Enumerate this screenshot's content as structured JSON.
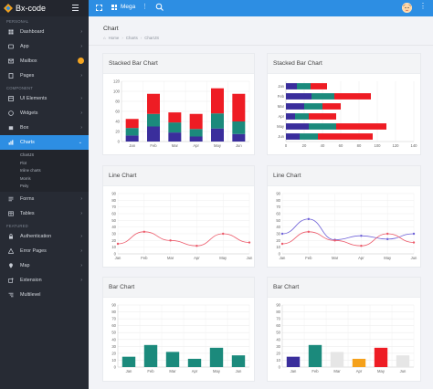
{
  "brand": {
    "name": "Bx-code"
  },
  "sidebar": {
    "sections": [
      {
        "label": "PERSONAL",
        "items": [
          {
            "label": "Dashboard",
            "icon": "dashboard-icon",
            "has_chevron": true
          },
          {
            "label": "App",
            "icon": "app-icon",
            "has_chevron": true
          },
          {
            "label": "Mailbox",
            "icon": "mail-icon",
            "has_badge": true
          },
          {
            "label": "Pages",
            "icon": "pages-icon",
            "has_chevron": true
          }
        ]
      },
      {
        "label": "COMPONENT",
        "items": [
          {
            "label": "UI Elements",
            "icon": "ui-elements-icon",
            "has_chevron": true
          },
          {
            "label": "Widgets",
            "icon": "widgets-icon",
            "has_chevron": true
          },
          {
            "label": "Box",
            "icon": "box-icon",
            "has_chevron": true
          },
          {
            "label": "Charts",
            "icon": "charts-icon",
            "has_chevron": true,
            "active": true,
            "submenu": [
              "ChartJS",
              "Flot",
              "Inline charts",
              "Morris",
              "Peity"
            ]
          },
          {
            "label": "Forms",
            "icon": "forms-icon",
            "has_chevron": true
          },
          {
            "label": "Tables",
            "icon": "tables-icon",
            "has_chevron": true
          }
        ]
      },
      {
        "label": "FEATURED",
        "items": [
          {
            "label": "Authentication",
            "icon": "auth-icon",
            "has_chevron": true
          },
          {
            "label": "Error Pages",
            "icon": "error-pages-icon",
            "has_chevron": true
          },
          {
            "label": "Map",
            "icon": "map-icon",
            "has_chevron": true
          },
          {
            "label": "Extension",
            "icon": "extension-icon",
            "has_chevron": true
          },
          {
            "label": "Multilevel",
            "icon": "multilevel-icon",
            "has_chevron": false
          }
        ]
      }
    ]
  },
  "header": {
    "mega_label": "Mega"
  },
  "page": {
    "title": "Chart",
    "breadcrumb": [
      "Home",
      "Charts",
      "ChartJS"
    ]
  },
  "colors": {
    "accent": "#2d8ee3",
    "sidebar": "#272b34",
    "navy": "#3a2e9c",
    "teal": "#1b8a7c",
    "red": "#ee1c24",
    "gray": "#e6e6e6",
    "orange": "#f5a11b",
    "purple": "#6f62d8",
    "pink": "#ec5a6a"
  },
  "cards": [
    {
      "title": "Stacked Bar Chart"
    },
    {
      "title": "Stacked Bar Chart"
    },
    {
      "title": "Line Chart"
    },
    {
      "title": "Line Chart"
    },
    {
      "title": "Bar Chart"
    },
    {
      "title": "Bar Chart"
    }
  ],
  "chart_data": [
    {
      "type": "bar",
      "stacked": true,
      "orientation": "vertical",
      "title": "Stacked Bar Chart",
      "categories": [
        "Jan",
        "Feb",
        "Mar",
        "Apr",
        "May",
        "Jun"
      ],
      "ylim": [
        0,
        120
      ],
      "yticks": [
        0,
        20,
        40,
        60,
        80,
        100,
        120
      ],
      "series": [
        {
          "color": "#3a2e9c",
          "values": [
            12,
            30,
            18,
            10,
            26,
            15
          ]
        },
        {
          "color": "#1b8a7c",
          "values": [
            15,
            25,
            20,
            15,
            30,
            25
          ]
        },
        {
          "color": "#ee1c24",
          "values": [
            18,
            40,
            20,
            30,
            50,
            55
          ]
        }
      ]
    },
    {
      "type": "bar",
      "stacked": true,
      "orientation": "horizontal",
      "title": "Stacked Bar Chart",
      "categories": [
        "Jan",
        "Feb",
        "Mar",
        "Apr",
        "May",
        "Jun"
      ],
      "xlim": [
        0,
        140
      ],
      "xticks": [
        0,
        20,
        40,
        60,
        80,
        100,
        120,
        140
      ],
      "series": [
        {
          "color": "#3a2e9c",
          "values": [
            12,
            28,
            20,
            10,
            25,
            15
          ]
        },
        {
          "color": "#1b8a7c",
          "values": [
            15,
            25,
            20,
            15,
            30,
            20
          ]
        },
        {
          "color": "#ee1c24",
          "values": [
            18,
            40,
            20,
            30,
            55,
            60
          ]
        }
      ]
    },
    {
      "type": "line",
      "title": "Line Chart",
      "categories": [
        "Jan",
        "Feb",
        "Mar",
        "Apr",
        "May",
        "Jun"
      ],
      "ylim": [
        0,
        90
      ],
      "yticks": [
        0,
        10,
        20,
        30,
        40,
        50,
        60,
        70,
        80,
        90
      ],
      "series": [
        {
          "color": "#ec5a6a",
          "values": [
            15,
            33,
            20,
            12,
            30,
            17
          ]
        }
      ]
    },
    {
      "type": "line",
      "title": "Line Chart",
      "categories": [
        "Jan",
        "Feb",
        "Mar",
        "Apr",
        "May",
        "Jun"
      ],
      "ylim": [
        0,
        90
      ],
      "yticks": [
        0,
        10,
        20,
        30,
        40,
        50,
        60,
        70,
        80,
        90
      ],
      "series": [
        {
          "color": "#6f62d8",
          "values": [
            30,
            52,
            21,
            27,
            22,
            30
          ]
        },
        {
          "color": "#ec5a6a",
          "values": [
            15,
            33,
            20,
            12,
            30,
            17
          ]
        }
      ]
    },
    {
      "type": "bar",
      "title": "Bar Chart",
      "categories": [
        "Jan",
        "Feb",
        "Mar",
        "Apr",
        "May",
        "Jun"
      ],
      "ylim": [
        0,
        90
      ],
      "yticks": [
        0,
        10,
        20,
        30,
        40,
        50,
        60,
        70,
        80,
        90
      ],
      "series": [
        {
          "colors": [
            "#1b8a7c",
            "#1b8a7c",
            "#1b8a7c",
            "#1b8a7c",
            "#1b8a7c",
            "#1b8a7c"
          ],
          "values": [
            15,
            32,
            22,
            12,
            28,
            17
          ]
        }
      ]
    },
    {
      "type": "bar",
      "title": "Bar Chart",
      "categories": [
        "Jan",
        "Feb",
        "Mar",
        "Apr",
        "May",
        "Jun"
      ],
      "ylim": [
        0,
        90
      ],
      "yticks": [
        0,
        10,
        20,
        30,
        40,
        50,
        60,
        70,
        80,
        90
      ],
      "series": [
        {
          "colors": [
            "#3a2e9c",
            "#1b8a7c",
            "#e6e6e6",
            "#f5a11b",
            "#ee1c24",
            "#e6e6e6"
          ],
          "values": [
            15,
            32,
            22,
            12,
            28,
            17
          ]
        }
      ]
    }
  ]
}
